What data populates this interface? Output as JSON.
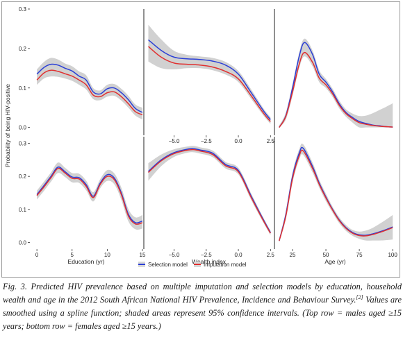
{
  "ylabel": "Probability of being HIV-positive",
  "legend": {
    "entries": [
      {
        "label": "Selection model",
        "color": "#2b3fd6"
      },
      {
        "label": "Imputation model",
        "color": "#e03030"
      }
    ]
  },
  "caption": {
    "lead": "Fig. 3. Predicted HIV prevalence based on multiple imputation and selection models by education, household wealth and age in the 2012 South African National HIV Prevalence, Incidence and Behaviour Survey.",
    "ref": "[2]",
    "rest": " Values are smoothed using a spline function; shaded areas represent 95% confidence intervals. (Top row = males aged ≥15 years; bottom row = females aged ≥15 years.)"
  },
  "chart_data": [
    {
      "type": "line",
      "panel": "top-left",
      "xlim": [
        -1,
        15
      ],
      "ylim": [
        -0.02,
        0.3
      ],
      "x": [
        0,
        1,
        2,
        3,
        4,
        5,
        6,
        7,
        8,
        9,
        10,
        11,
        12,
        13,
        14,
        15
      ],
      "series": [
        {
          "name": "Selection model",
          "values": [
            0.135,
            0.152,
            0.16,
            0.158,
            0.15,
            0.143,
            0.13,
            0.12,
            0.09,
            0.085,
            0.098,
            0.1,
            0.088,
            0.07,
            0.048,
            0.038
          ]
        },
        {
          "name": "Imputation model",
          "values": [
            0.12,
            0.138,
            0.145,
            0.142,
            0.136,
            0.13,
            0.12,
            0.108,
            0.082,
            0.078,
            0.088,
            0.09,
            0.078,
            0.06,
            0.04,
            0.032
          ]
        }
      ],
      "ci_halfwidth": [
        0.012,
        0.014,
        0.016,
        0.014,
        0.012,
        0.012,
        0.012,
        0.012,
        0.01,
        0.009,
        0.01,
        0.01,
        0.01,
        0.01,
        0.01,
        0.012
      ],
      "yticks": [
        0.0,
        0.1,
        0.2,
        0.3
      ]
    },
    {
      "type": "line",
      "panel": "top-middle",
      "xlim": [
        -7.3,
        2.7
      ],
      "ylim": [
        -0.02,
        0.3
      ],
      "x": [
        -7,
        -6,
        -5,
        -4,
        -3,
        -2,
        -1,
        0,
        1,
        2,
        2.5
      ],
      "series": [
        {
          "name": "Selection model",
          "values": [
            0.222,
            0.195,
            0.178,
            0.174,
            0.172,
            0.168,
            0.158,
            0.135,
            0.088,
            0.04,
            0.02
          ]
        },
        {
          "name": "Imputation model",
          "values": [
            0.205,
            0.178,
            0.163,
            0.16,
            0.158,
            0.153,
            0.142,
            0.123,
            0.08,
            0.034,
            0.015
          ]
        }
      ],
      "ci_halfwidth": [
        0.038,
        0.028,
        0.016,
        0.01,
        0.008,
        0.008,
        0.008,
        0.008,
        0.008,
        0.006,
        0.006
      ],
      "xticks": [
        -5.0,
        -2.5,
        0.0,
        2.5
      ],
      "xtick_labels": [
        "−5.0",
        "−2.5",
        "0.0",
        "2.5"
      ]
    },
    {
      "type": "line",
      "panel": "top-right",
      "xlim": [
        12,
        102
      ],
      "ylim": [
        -0.02,
        0.3
      ],
      "x": [
        15,
        20,
        25,
        30,
        34,
        40,
        45,
        50,
        55,
        60,
        65,
        70,
        75,
        80,
        85,
        90,
        95,
        100
      ],
      "series": [
        {
          "name": "Selection model",
          "values": [
            0.0,
            0.03,
            0.1,
            0.18,
            0.215,
            0.185,
            0.135,
            0.115,
            0.09,
            0.06,
            0.038,
            0.025,
            0.015,
            0.01,
            0.006,
            0.004,
            0.002,
            0.001
          ]
        },
        {
          "name": "Imputation model",
          "values": [
            0.0,
            0.028,
            0.09,
            0.16,
            0.19,
            0.165,
            0.125,
            0.108,
            0.085,
            0.056,
            0.035,
            0.022,
            0.012,
            0.008,
            0.005,
            0.003,
            0.002,
            0.001
          ]
        }
      ],
      "ci_halfwidth": [
        0.005,
        0.008,
        0.01,
        0.01,
        0.01,
        0.01,
        0.01,
        0.008,
        0.008,
        0.008,
        0.008,
        0.01,
        0.014,
        0.02,
        0.03,
        0.04,
        0.05,
        0.06
      ]
    },
    {
      "type": "line",
      "panel": "bottom-left",
      "xlim": [
        -1,
        15
      ],
      "ylim": [
        -0.02,
        0.32
      ],
      "x": [
        0,
        1,
        2,
        3,
        4,
        5,
        6,
        7,
        8,
        9,
        10,
        11,
        12,
        13,
        14,
        15
      ],
      "series": [
        {
          "name": "Selection model",
          "values": [
            0.145,
            0.172,
            0.2,
            0.228,
            0.214,
            0.198,
            0.196,
            0.175,
            0.14,
            0.18,
            0.205,
            0.195,
            0.15,
            0.085,
            0.06,
            0.065
          ]
        },
        {
          "name": "Imputation model",
          "values": [
            0.142,
            0.168,
            0.196,
            0.224,
            0.21,
            0.194,
            0.192,
            0.17,
            0.136,
            0.176,
            0.2,
            0.19,
            0.145,
            0.08,
            0.056,
            0.06
          ]
        }
      ],
      "ci_halfwidth": [
        0.012,
        0.012,
        0.012,
        0.014,
        0.012,
        0.012,
        0.012,
        0.012,
        0.012,
        0.012,
        0.014,
        0.014,
        0.016,
        0.016,
        0.016,
        0.018
      ],
      "xticks": [
        0,
        5,
        10,
        15
      ],
      "yticks": [
        0.0,
        0.1,
        0.2,
        0.3
      ],
      "xlabel": "Education (yr)"
    },
    {
      "type": "line",
      "panel": "bottom-middle",
      "xlim": [
        -7.3,
        2.7
      ],
      "ylim": [
        -0.02,
        0.32
      ],
      "x": [
        -7,
        -6,
        -5,
        -4,
        -3.5,
        -3,
        -2,
        -1,
        0,
        1,
        2,
        2.5
      ],
      "series": [
        {
          "name": "Selection model",
          "values": [
            0.215,
            0.25,
            0.272,
            0.282,
            0.284,
            0.28,
            0.27,
            0.236,
            0.218,
            0.14,
            0.065,
            0.03
          ]
        },
        {
          "name": "Imputation model",
          "values": [
            0.212,
            0.247,
            0.269,
            0.279,
            0.281,
            0.277,
            0.266,
            0.232,
            0.214,
            0.136,
            0.062,
            0.028
          ]
        }
      ],
      "ci_halfwidth": [
        0.025,
        0.016,
        0.01,
        0.008,
        0.008,
        0.008,
        0.008,
        0.008,
        0.008,
        0.008,
        0.006,
        0.006
      ],
      "xticks": [
        -5.0,
        -2.5,
        0.0,
        2.5
      ],
      "xtick_labels": [
        "−5.0",
        "−2.5",
        "0.0",
        "2.5"
      ],
      "xlabel": "Wealth index"
    },
    {
      "type": "line",
      "panel": "bottom-right",
      "xlim": [
        12,
        102
      ],
      "ylim": [
        -0.02,
        0.32
      ],
      "x": [
        15,
        20,
        25,
        30,
        33,
        40,
        45,
        50,
        55,
        60,
        65,
        70,
        75,
        80,
        85,
        90,
        95,
        100
      ],
      "series": [
        {
          "name": "Selection model",
          "values": [
            0.005,
            0.085,
            0.2,
            0.27,
            0.285,
            0.23,
            0.18,
            0.138,
            0.1,
            0.068,
            0.045,
            0.03,
            0.023,
            0.022,
            0.026,
            0.032,
            0.039,
            0.047
          ]
        },
        {
          "name": "Imputation model",
          "values": [
            0.005,
            0.08,
            0.193,
            0.262,
            0.277,
            0.224,
            0.176,
            0.135,
            0.098,
            0.066,
            0.043,
            0.028,
            0.021,
            0.02,
            0.024,
            0.03,
            0.037,
            0.045
          ]
        }
      ],
      "ci_halfwidth": [
        0.006,
        0.01,
        0.012,
        0.012,
        0.012,
        0.012,
        0.01,
        0.01,
        0.008,
        0.008,
        0.008,
        0.008,
        0.01,
        0.014,
        0.018,
        0.024,
        0.03,
        0.036
      ],
      "xticks": [
        25,
        50,
        75,
        100
      ],
      "xlabel": "Age (yr)"
    }
  ]
}
